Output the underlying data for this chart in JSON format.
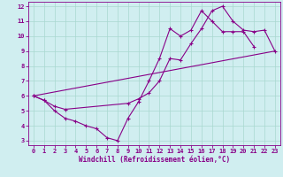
{
  "xlabel": "Windchill (Refroidissement éolien,°C)",
  "bg_color": "#d0eef0",
  "grid_color": "#a8d8d0",
  "line_color": "#880088",
  "xlim": [
    0,
    23
  ],
  "ylim": [
    3,
    12
  ],
  "xticks": [
    0,
    1,
    2,
    3,
    4,
    5,
    6,
    7,
    8,
    9,
    10,
    11,
    12,
    13,
    14,
    15,
    16,
    17,
    18,
    19,
    20,
    21,
    22,
    23
  ],
  "yticks": [
    3,
    4,
    5,
    6,
    7,
    8,
    9,
    10,
    11,
    12
  ],
  "line1_x": [
    0,
    1,
    2,
    3,
    4,
    5,
    6,
    7,
    8,
    9,
    10,
    11,
    12,
    13,
    14,
    15,
    16,
    17,
    18,
    19,
    20,
    21
  ],
  "line1_y": [
    6.0,
    5.7,
    5.0,
    4.5,
    4.3,
    4.0,
    3.8,
    3.2,
    3.0,
    4.5,
    5.6,
    7.0,
    8.5,
    10.5,
    10.0,
    10.4,
    11.7,
    11.0,
    10.3,
    10.3,
    10.3,
    9.3
  ],
  "line2_x": [
    0,
    1,
    2,
    3,
    9,
    10,
    11,
    12,
    13,
    14,
    15,
    16,
    17,
    18,
    19,
    20,
    21,
    22,
    23
  ],
  "line2_y": [
    6.0,
    5.7,
    5.3,
    5.1,
    5.5,
    5.8,
    6.2,
    7.0,
    8.5,
    8.4,
    9.5,
    10.5,
    11.7,
    12.0,
    11.0,
    10.4,
    10.3,
    10.4,
    9.0
  ],
  "line3_x": [
    0,
    23
  ],
  "line3_y": [
    6.0,
    9.0
  ]
}
